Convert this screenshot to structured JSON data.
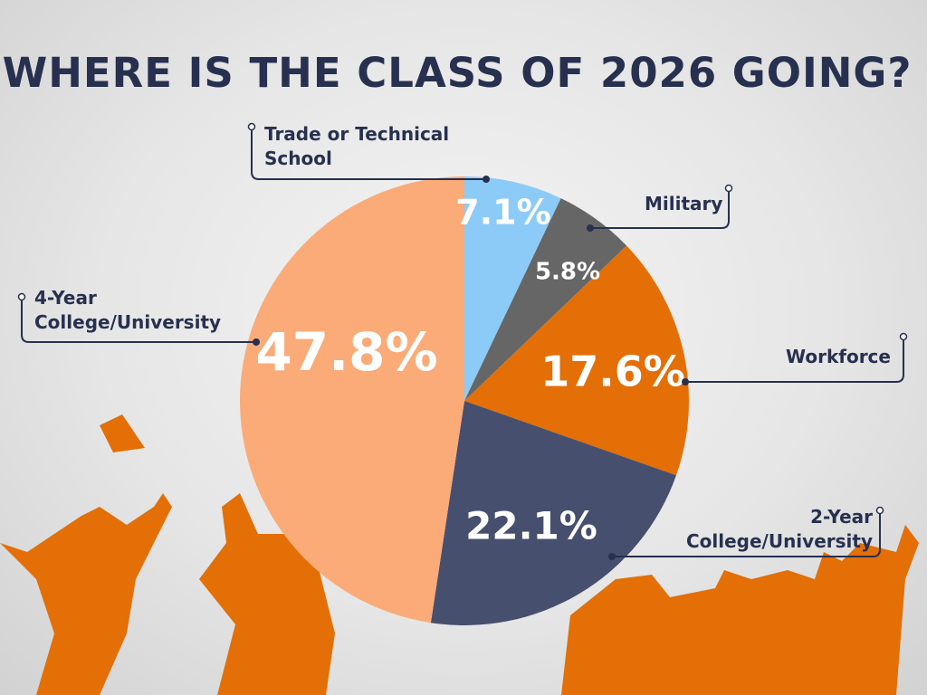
{
  "chart_data": {
    "type": "pie",
    "title": "WHERE IS THE CLASS OF 2026 GOING?",
    "categories": [
      "Trade or Technical School",
      "Military",
      "Workforce",
      "2-Year College/University",
      "4-Year College/University"
    ],
    "values": [
      7.1,
      5.8,
      17.6,
      22.1,
      47.8
    ],
    "value_labels": [
      "7.1%",
      "5.8%",
      "17.6%",
      "22.1%",
      "47.8%"
    ],
    "colors": [
      "#8ccbf7",
      "#666666",
      "#e36f06",
      "#474f6e",
      "#fbab78"
    ]
  }
}
